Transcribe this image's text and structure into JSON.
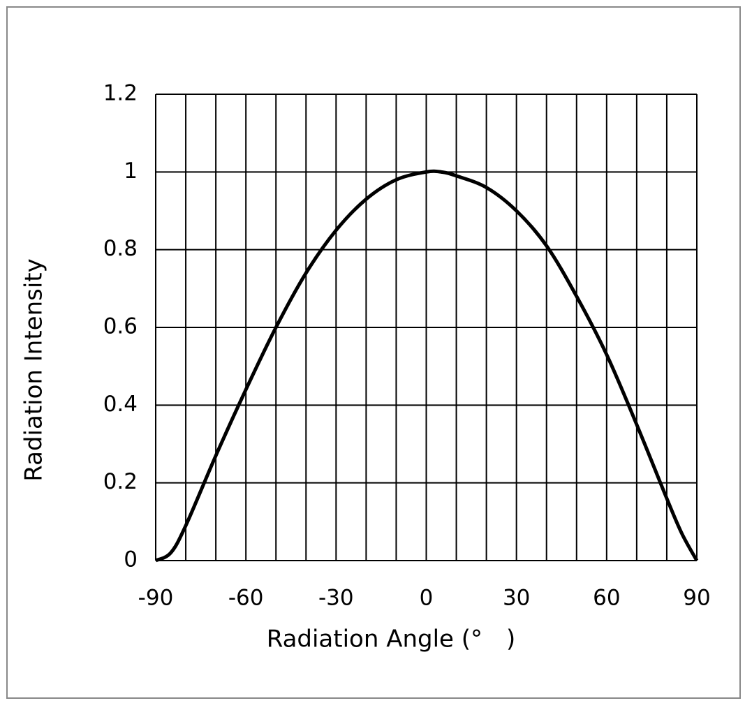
{
  "chart_data": {
    "type": "line",
    "x_label": "Radiation Angle (°　)",
    "y_label": "Radiation Intensity",
    "x": [
      -90,
      -85,
      -80,
      -70,
      -60,
      -50,
      -40,
      -30,
      -20,
      -10,
      0,
      5,
      10,
      20,
      30,
      40,
      50,
      60,
      70,
      80,
      85,
      90
    ],
    "series": [
      {
        "color": "#000000",
        "values": [
          0,
          0.02,
          0.09,
          0.27,
          0.44,
          0.6,
          0.74,
          0.85,
          0.93,
          0.98,
          1.0,
          1.0,
          0.99,
          0.96,
          0.9,
          0.81,
          0.68,
          0.53,
          0.35,
          0.16,
          0.07,
          0
        ]
      }
    ],
    "xlim": [
      -90,
      90
    ],
    "ylim": [
      0,
      1.2
    ],
    "xticks": [
      -90,
      -60,
      -30,
      0,
      30,
      60,
      90
    ],
    "xminorticks": [
      -80,
      -70,
      -50,
      -40,
      -20,
      -10,
      10,
      20,
      40,
      50,
      70,
      80
    ],
    "yticks": [
      0,
      0.2,
      0.4,
      0.6,
      0.8,
      1,
      1.2
    ],
    "grid": true
  }
}
